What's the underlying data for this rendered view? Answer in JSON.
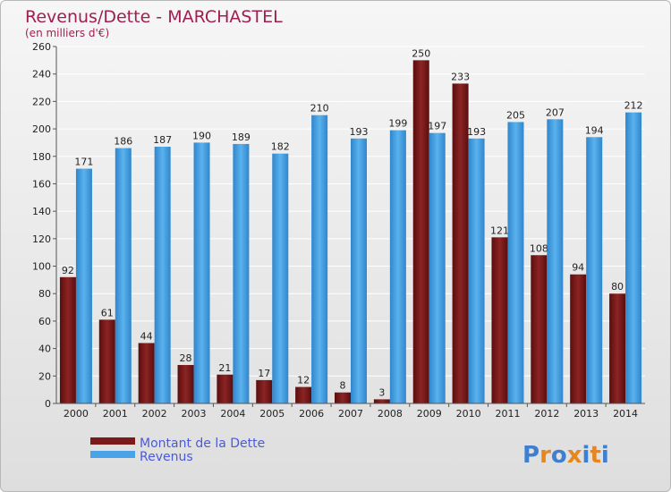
{
  "chart_data": {
    "type": "bar",
    "title": "Revenus/Dette - MARCHASTEL",
    "subtitle": "(en milliers d'€)",
    "categories": [
      "2000",
      "2001",
      "2002",
      "2003",
      "2004",
      "2005",
      "2006",
      "2007",
      "2008",
      "2009",
      "2010",
      "2011",
      "2012",
      "2013",
      "2014"
    ],
    "series": [
      {
        "name": "Montant de la Dette",
        "values": [
          92,
          61,
          44,
          28,
          21,
          17,
          12,
          8,
          3,
          250,
          233,
          121,
          108,
          94,
          80
        ],
        "color": "#7a1a1a"
      },
      {
        "name": "Revenus",
        "values": [
          171,
          186,
          187,
          190,
          189,
          182,
          210,
          193,
          199,
          197,
          193,
          205,
          207,
          194,
          212
        ],
        "color": "#4aa3e6"
      }
    ],
    "ylim": [
      0,
      260
    ],
    "yticks": [
      0,
      20,
      40,
      60,
      80,
      100,
      120,
      140,
      160,
      180,
      200,
      220,
      240,
      260
    ],
    "grid": true,
    "legend_position": "bottom-left"
  },
  "colors": {
    "title": "#a01e50",
    "legend_text": "#4a5ad8",
    "debt": "#7a1a1a",
    "revenue": "#4aa3e6"
  },
  "logo": {
    "text": "Proxiti",
    "letter_colors": [
      "#3d7fd0",
      "#e8861e",
      "#3d7fd0",
      "#e8861e",
      "#3d7fd0",
      "#e8861e",
      "#3d7fd0"
    ]
  }
}
